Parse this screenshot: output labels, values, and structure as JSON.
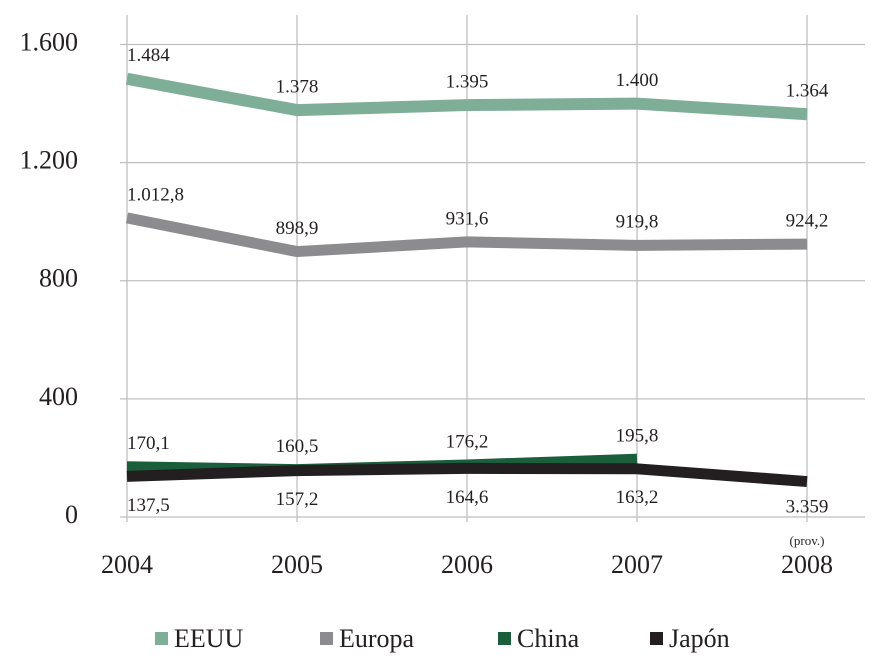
{
  "chart_data": {
    "type": "line",
    "categories": [
      "2004",
      "2005",
      "2006",
      "2007",
      "2008"
    ],
    "series": [
      {
        "name": "EEUU",
        "color": "#7fae98",
        "values": [
          1484,
          1378,
          1395,
          1400,
          1364
        ],
        "value_labels": [
          "1.484",
          "1.378",
          "1.395",
          "1.400",
          "1.364"
        ]
      },
      {
        "name": "Europa",
        "color": "#8c8c8e",
        "values": [
          1012.8,
          898.9,
          931.6,
          919.8,
          924.2
        ],
        "value_labels": [
          "1.012,8",
          "898,9",
          "931,6",
          "919,8",
          "924,2"
        ]
      },
      {
        "name": "China",
        "color": "#1b5e3b",
        "values": [
          170.1,
          160.5,
          176.2,
          195.8,
          null
        ],
        "value_labels": [
          "170,1",
          "160,5",
          "176,2",
          "195,8",
          null
        ]
      },
      {
        "name": "Japón",
        "color": "#231f20",
        "values": [
          137.5,
          157.2,
          164.6,
          163.2,
          120
        ],
        "value_labels": [
          "137,5",
          "157,2",
          "164,6",
          "163,2",
          null
        ]
      }
    ],
    "annotations": [
      "(prov.)",
      "3.359"
    ],
    "ylim": [
      0,
      1700
    ],
    "yticks": [
      0,
      400,
      800,
      {
        "value": 1200,
        "label": "1.200"
      },
      {
        "value": 1600,
        "label": "1.600"
      }
    ],
    "grid": true
  }
}
